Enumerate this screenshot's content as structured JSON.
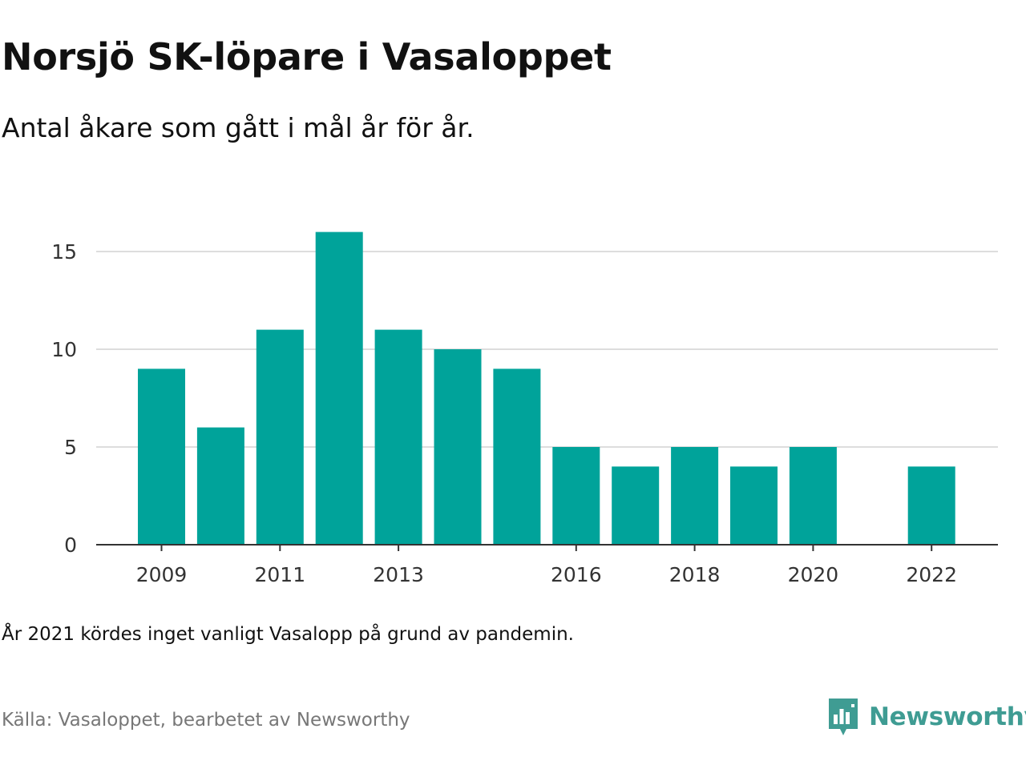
{
  "title": "Norsjö SK-löpare i Vasaloppet",
  "subtitle": "Antal åkare som gått i mål år för år.",
  "note": "År 2021 kördes inget vanligt Vasalopp på grund av pandemin.",
  "source": "Källa: Vasaloppet, bearbetet av Newsworthy",
  "brand": {
    "name": "Newsworthy",
    "icon": "newsworthy-logo-icon",
    "color": "#3f9c93"
  },
  "colors": {
    "bar": "#00a39a",
    "grid": "#dddddd",
    "axis": "#333333"
  },
  "chart_data": {
    "type": "bar",
    "title": "Norsjö SK-löpare i Vasaloppet",
    "xlabel": "",
    "ylabel": "",
    "categories": [
      "2009",
      "2010",
      "2011",
      "2012",
      "2013",
      "2014",
      "2015",
      "2016",
      "2017",
      "2018",
      "2019",
      "2020",
      "2021",
      "2022"
    ],
    "values": [
      9,
      6,
      11,
      16,
      11,
      10,
      9,
      5,
      4,
      5,
      4,
      5,
      null,
      4
    ],
    "x_tick_labels": [
      "2009",
      "2011",
      "2013",
      "2016",
      "2018",
      "2020",
      "2022"
    ],
    "y_ticks": [
      0,
      5,
      10,
      15
    ],
    "ylim": [
      0,
      16
    ],
    "grid": true,
    "legend": "none"
  }
}
